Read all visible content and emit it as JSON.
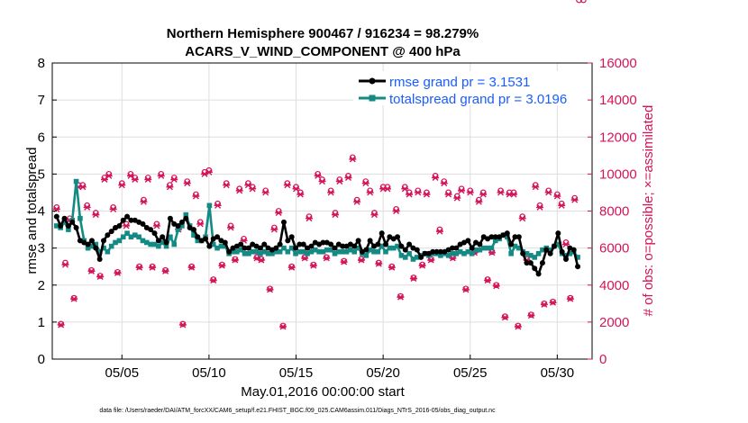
{
  "colors": {
    "rmse": "#000000",
    "spread": "#138a84",
    "obs": "#d4145a",
    "legend_text": "#1a5cff",
    "grid": "#dedede"
  },
  "chart_data": {
    "type": "line",
    "title": "Northern Hemisphere 900467 / 916234 = 98.279%",
    "subtitle": "ACARS_V_WIND_COMPONENT @ 400 hPa",
    "xlabel": "May.01,2016 00:00:00 start",
    "ylabel": "rmse and totalspread",
    "y2label": "# of obs: o=possible; ×=assimilated",
    "xlim": [
      1.0,
      32.0
    ],
    "ylim": [
      0,
      8
    ],
    "y2lim": [
      0,
      16000
    ],
    "x_ticks": [
      5,
      10,
      15,
      20,
      25,
      30
    ],
    "x_tick_labels": [
      "05/05",
      "05/10",
      "05/15",
      "05/20",
      "05/25",
      "05/30"
    ],
    "y_ticks": [
      "0",
      "1",
      "2",
      "3",
      "4",
      "5",
      "6",
      "7",
      "8"
    ],
    "y2_ticks": [
      "0",
      "2000",
      "4000",
      "6000",
      "8000",
      "10000",
      "12000",
      "14000",
      "16000"
    ],
    "grid": true,
    "legend_position": "top-right",
    "footer": "data file: /Users/raeder/DAI/ATM_forcXX/CAM6_setup/f.e21.FHIST_BGC.f09_025.CAM6assim.011/Diags_NTrS_2016-05/obs_diag_output.nc",
    "series": [
      {
        "name": "rmse grand pr = 3.1531",
        "values": [
          3.85,
          3.6,
          3.8,
          3.6,
          3.7,
          3.55,
          3.2,
          3.15,
          3.1,
          3.2,
          3.0,
          2.7,
          3.2,
          3.35,
          3.45,
          3.55,
          3.6,
          3.75,
          3.85,
          3.75,
          3.75,
          3.7,
          3.65,
          3.55,
          3.5,
          3.4,
          3.2,
          3.3,
          3.15,
          3.8,
          3.65,
          3.6,
          3.7,
          3.8,
          3.55,
          3.5,
          3.3,
          3.2,
          3.25,
          3.05,
          3.25,
          3.3,
          3.2,
          3.15,
          2.9,
          3.0,
          3.05,
          3.1,
          3.0,
          3.0,
          3.1,
          3.05,
          3.0,
          3.1,
          3.0,
          2.95,
          3.0,
          3.1,
          3.7,
          3.2,
          3.3,
          3.0,
          3.1,
          3.1,
          3.0,
          3.05,
          3.15,
          3.1,
          3.15,
          3.15,
          3.1,
          3.0,
          3.1,
          3.05,
          3.05,
          3.1,
          3.05,
          3.2,
          2.9,
          2.95,
          3.2,
          3.05,
          3.1,
          3.4,
          3.1,
          3.3,
          3.25,
          3.3,
          3.05,
          2.95,
          3.1,
          3.0,
          2.95,
          2.75,
          2.85,
          2.85,
          2.9,
          2.9,
          2.9,
          2.9,
          2.95,
          3.0,
          3.0,
          3.1,
          3.15,
          3.2,
          3.0,
          3.15,
          3.1,
          3.3,
          3.25,
          3.3,
          3.3,
          3.3,
          3.35,
          3.4,
          3.1,
          3.3,
          3.3,
          2.85,
          2.6,
          2.6,
          2.45,
          2.3,
          2.6,
          2.95,
          2.85,
          3.05,
          3.4,
          2.9,
          2.7,
          3.0,
          2.95,
          2.5
        ],
        "x_start": 1.25,
        "x_step": 0.225
      },
      {
        "name": "totalspread grand pr = 3.0196",
        "values": [
          3.6,
          3.55,
          3.7,
          3.5,
          3.75,
          4.8,
          3.8,
          3.2,
          3.0,
          3.05,
          3.1,
          2.9,
          3.0,
          2.9,
          3.05,
          3.15,
          3.2,
          3.3,
          3.4,
          3.3,
          3.35,
          3.3,
          3.2,
          3.15,
          3.1,
          3.1,
          3.05,
          3.15,
          3.05,
          3.3,
          3.1,
          3.5,
          3.6,
          3.9,
          3.6,
          3.35,
          3.2,
          3.2,
          3.3,
          4.15,
          3.1,
          3.0,
          3.05,
          3.05,
          2.85,
          2.9,
          2.9,
          2.95,
          2.85,
          2.85,
          2.9,
          2.9,
          2.85,
          2.9,
          2.85,
          2.85,
          2.9,
          2.9,
          3.0,
          2.9,
          3.0,
          2.85,
          2.9,
          2.9,
          2.85,
          2.9,
          2.95,
          2.9,
          2.9,
          2.95,
          2.95,
          2.85,
          2.9,
          2.9,
          2.9,
          2.95,
          2.9,
          3.0,
          2.85,
          2.8,
          2.95,
          2.9,
          2.9,
          3.05,
          2.9,
          3.0,
          3.0,
          3.05,
          2.8,
          2.75,
          2.85,
          2.7,
          2.75,
          2.8,
          2.85,
          2.8,
          2.85,
          2.85,
          2.8,
          2.85,
          2.8,
          2.85,
          2.85,
          2.9,
          2.85,
          2.9,
          2.85,
          2.95,
          2.95,
          3.0,
          3.0,
          3.0,
          3.2,
          3.25,
          3.35,
          3.3,
          2.85,
          3.05,
          3.0,
          2.9,
          2.85,
          2.8,
          2.75,
          2.85,
          2.95,
          3.0,
          2.95,
          3.05,
          3.1,
          2.85,
          2.8,
          2.85,
          2.9,
          2.75
        ],
        "x_start": 1.25,
        "x_step": 0.225
      },
      {
        "name": "obs possible/assimilated (right axis)",
        "x": [
          1.25,
          1.5,
          1.75,
          2.0,
          2.25,
          2.5,
          2.75,
          3.0,
          3.25,
          3.5,
          3.75,
          4.0,
          4.25,
          4.5,
          4.75,
          5.0,
          5.25,
          5.5,
          5.75,
          6.0,
          6.25,
          6.5,
          6.75,
          7.0,
          7.25,
          7.5,
          7.75,
          8.0,
          8.25,
          8.5,
          8.75,
          9.0,
          9.25,
          9.5,
          9.75,
          10.0,
          10.25,
          10.5,
          10.75,
          11.0,
          11.25,
          11.5,
          11.75,
          12.0,
          12.25,
          12.5,
          12.75,
          13.0,
          13.25,
          13.5,
          13.75,
          14.0,
          14.25,
          14.5,
          14.75,
          15.0,
          15.25,
          15.5,
          15.75,
          16.0,
          16.25,
          16.5,
          16.75,
          17.0,
          17.25,
          17.5,
          17.75,
          18.0,
          18.25,
          18.5,
          18.75,
          19.0,
          19.25,
          19.5,
          19.75,
          20.0,
          20.25,
          20.5,
          20.75,
          21.0,
          21.25,
          21.5,
          21.75,
          22.0,
          22.25,
          22.5,
          22.75,
          23.0,
          23.25,
          23.5,
          23.75,
          24.0,
          24.25,
          24.5,
          24.75,
          25.0,
          25.25,
          25.5,
          25.75,
          26.0,
          26.25,
          26.5,
          26.75,
          27.0,
          27.25,
          27.5,
          27.75,
          28.0,
          28.25,
          28.5,
          28.75,
          29.0,
          29.25,
          29.5,
          29.75,
          30.0,
          30.25,
          30.5,
          30.75,
          31.0,
          31.25,
          31.5
        ],
        "possible": [
          8200,
          1900,
          5200,
          7600,
          3300,
          9400,
          9400,
          8300,
          4800,
          7900,
          4500,
          9800,
          10000,
          8200,
          4700,
          9500,
          7300,
          10000,
          9800,
          5000,
          8600,
          9800,
          5000,
          7300,
          10000,
          4800,
          9400,
          9800,
          7100,
          1900,
          9600,
          5000,
          8900,
          7400,
          10100,
          10200,
          4300,
          8400,
          5100,
          9500,
          7200,
          5400,
          9200,
          6500,
          9500,
          9300,
          5500,
          5400,
          9100,
          3800,
          7100,
          8000,
          1800,
          9500,
          5000,
          9300,
          9000,
          5500,
          7700,
          5100,
          10000,
          9700,
          5500,
          9100,
          7900,
          9700,
          5300,
          9900,
          10900,
          8600,
          5400,
          9600,
          9100,
          7900,
          5200,
          9300,
          9300,
          5000,
          8100,
          3400,
          9300,
          9000,
          4400,
          9100,
          5100,
          9000,
          5400,
          9900,
          7000,
          9600,
          9000,
          5500,
          8800,
          9200,
          3800,
          9100,
          5800,
          8600,
          9000,
          4300,
          5800,
          4000,
          9100,
          2300,
          9000,
          9000,
          1800,
          7700,
          5400,
          2400,
          9400,
          8300,
          3000,
          9100,
          3100,
          8900,
          8400,
          6300,
          3300,
          8700
        ],
        "assimilated": [
          8100,
          1850,
          5100,
          7500,
          3250,
          9300,
          9300,
          8200,
          4750,
          7800,
          4450,
          9700,
          9900,
          8100,
          4650,
          9400,
          7200,
          9900,
          9700,
          4950,
          8500,
          9700,
          4950,
          7200,
          9900,
          4750,
          9300,
          9700,
          7000,
          1850,
          9500,
          4950,
          8800,
          7300,
          10000,
          10100,
          4250,
          8300,
          5050,
          9400,
          7100,
          5350,
          9100,
          6400,
          9400,
          9200,
          5450,
          5350,
          9000,
          3750,
          7000,
          7900,
          1750,
          9400,
          4950,
          9200,
          8900,
          5450,
          7600,
          5050,
          9900,
          9600,
          5450,
          9000,
          7800,
          9600,
          5250,
          9800,
          10800,
          8500,
          5350,
          9500,
          9000,
          7800,
          5150,
          9200,
          9200,
          4950,
          8000,
          3350,
          9200,
          8900,
          4350,
          9000,
          5050,
          8900,
          5350,
          9800,
          6900,
          9500,
          8900,
          5450,
          8700,
          9100,
          3750,
          9000,
          5750,
          8500,
          8900,
          4250,
          5750,
          3950,
          9000,
          2250,
          8900,
          8900,
          1750,
          7600,
          5350,
          2350,
          9300,
          8200,
          2950,
          9000,
          3050,
          8800,
          8300,
          6200,
          3250,
          8600
        ]
      }
    ]
  }
}
